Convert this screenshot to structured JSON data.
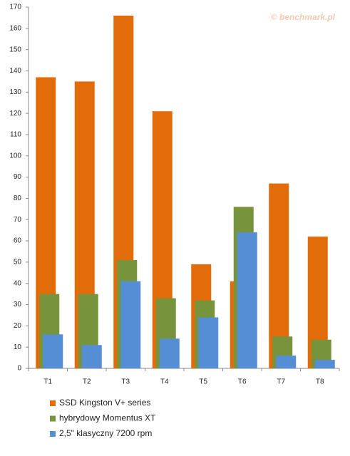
{
  "chart_data": {
    "type": "bar",
    "watermark": "© benchmark.pl",
    "categories": [
      "T1",
      "T2",
      "T3",
      "T4",
      "T5",
      "T6",
      "T7",
      "T8"
    ],
    "series": [
      {
        "name": "SSD Kingston V+ series",
        "color": "#e36c0a",
        "values": [
          137,
          135,
          166,
          121,
          49,
          41,
          87,
          62
        ]
      },
      {
        "name": "hybrydowy Momentus XT",
        "color": "#77933c",
        "values": [
          35,
          35,
          51,
          33,
          32,
          76,
          15,
          13.5
        ]
      },
      {
        "name": "2,5\" klasyczny 7200  rpm",
        "color": "#558ed5",
        "values": [
          16,
          11,
          41,
          14,
          24,
          64,
          6,
          4
        ]
      }
    ],
    "ylim": [
      0,
      170
    ],
    "yticks": [
      0,
      10,
      20,
      30,
      40,
      50,
      60,
      70,
      80,
      90,
      100,
      110,
      120,
      130,
      140,
      150,
      160,
      170
    ],
    "grid": false
  }
}
